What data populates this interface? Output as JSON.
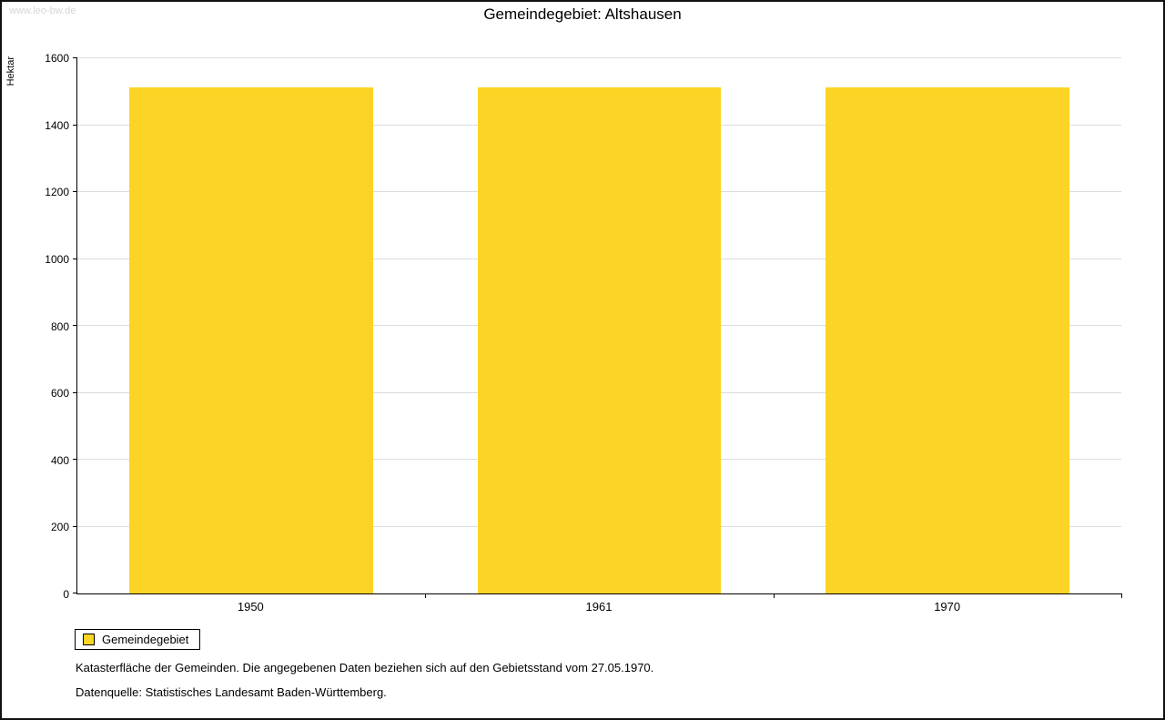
{
  "watermark": "www.leo-bw.de",
  "title": "Gemeindegebiet: Altshausen",
  "chart_data": {
    "type": "bar",
    "title": "Gemeindegebiet: Altshausen",
    "xlabel": "",
    "ylabel": "Hektar",
    "categories": [
      "1950",
      "1961",
      "1970"
    ],
    "series": [
      {
        "name": "Gemeindegebiet",
        "values": [
          1512,
          1512,
          1512
        ]
      }
    ],
    "ylim": [
      0,
      1600
    ],
    "ytick_step": 200,
    "bar_color": "#FCD425",
    "grid": true,
    "legend_position": "bottom-left"
  },
  "legend": {
    "items": [
      {
        "label": "Gemeindegebiet",
        "color": "#FCD425"
      }
    ]
  },
  "footnotes": [
    "Katasterfläche der Gemeinden. Die angegebenen Daten beziehen sich auf den Gebietsstand vom 27.05.1970.",
    "Datenquelle: Statistisches Landesamt Baden-Württemberg."
  ]
}
